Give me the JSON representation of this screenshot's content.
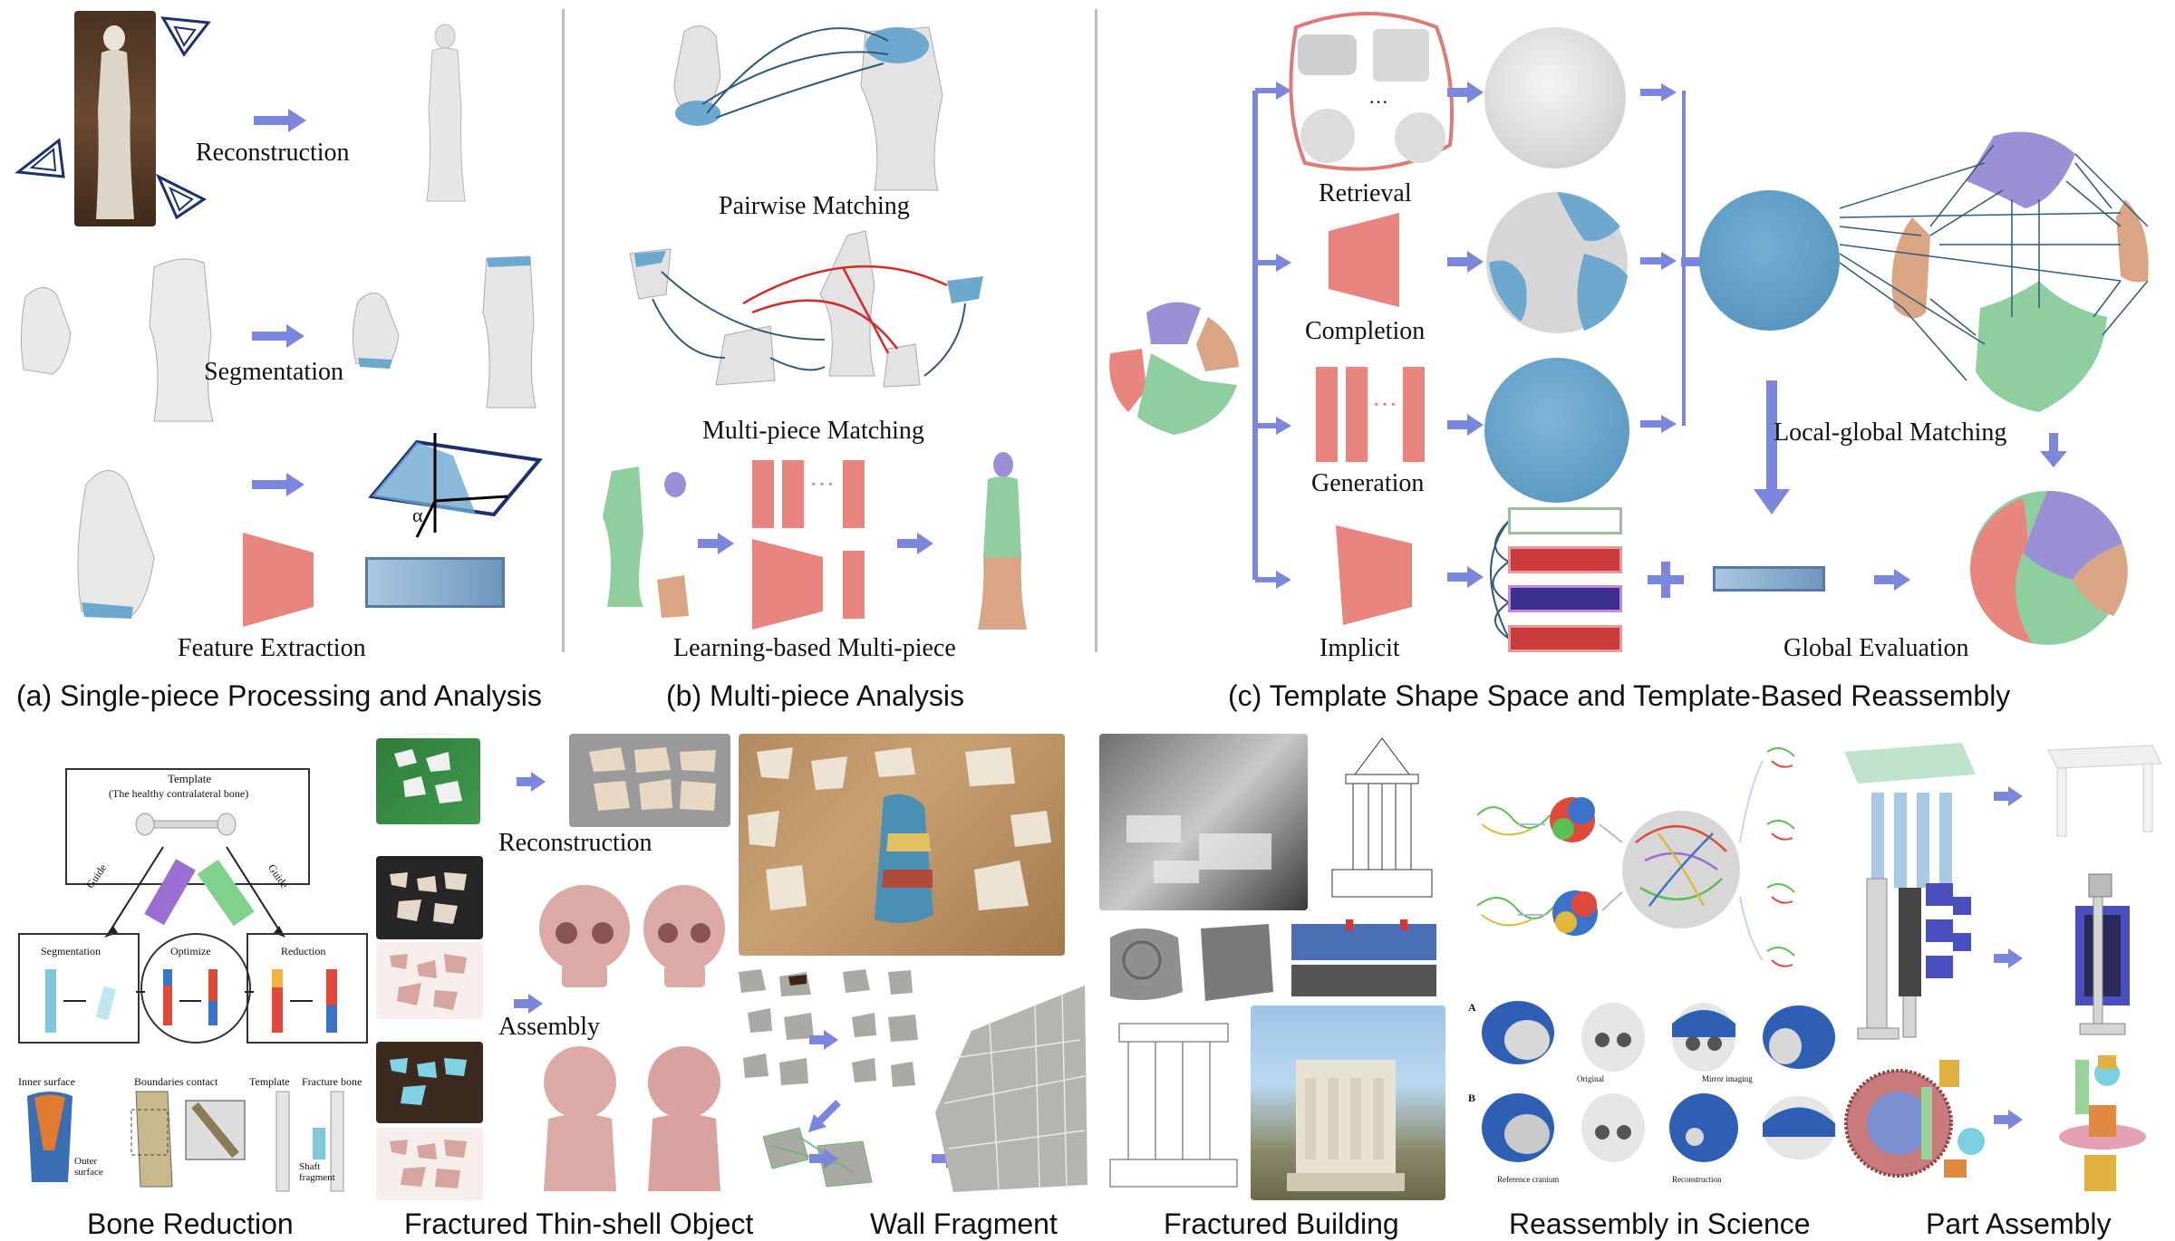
{
  "top": {
    "panel_a": {
      "caption": "(a) Single-piece Processing and Analysis",
      "labels": {
        "reconstruction": "Reconstruction",
        "segmentation": "Segmentation",
        "feature_extraction": "Feature Extraction",
        "alpha": "α"
      }
    },
    "panel_b": {
      "caption": "(b) Multi-piece Analysis",
      "labels": {
        "pairwise": "Pairwise Matching",
        "multi_piece": "Multi-piece Matching",
        "learning": "Learning-based Multi-piece",
        "dots": "···"
      }
    },
    "panel_c": {
      "caption": "(c) Template Shape Space and Template-Based Reassembly",
      "labels": {
        "retrieval": "Retrieval",
        "completion": "Completion",
        "generation": "Generation",
        "implicit": "Implicit",
        "local_global": "Local-global Matching",
        "global_eval": "Global Evaluation",
        "dots": "···"
      }
    }
  },
  "bottom": {
    "bone": {
      "caption": "Bone Reduction",
      "template_title": "Template",
      "template_sub": "(The healthy contralateral bone)",
      "guide": "Guide",
      "segmentation": "Segmentation",
      "optimize": "Optimize",
      "reduction": "Reduction",
      "inner_surface": "Inner surface",
      "boundaries_contact": "Boundaries contact",
      "template": "Template",
      "fracture_bone": "Fracture bone",
      "outer_surface": "Outer surface",
      "shaft_fragment": "Shaft fragment"
    },
    "thin_shell": {
      "caption": "Fractured Thin-shell Object",
      "reconstruction": "Reconstruction",
      "assembly": "Assembly"
    },
    "wall": {
      "caption": "Wall Fragment"
    },
    "building": {
      "caption": "Fractured Building"
    },
    "science": {
      "caption": "Reassembly in Science",
      "label_a": "A",
      "label_b": "B",
      "original": "Original",
      "mirror": "Mirror imaging",
      "reference": "Reference cranium",
      "reconstruction": "Reconstruction"
    },
    "part": {
      "caption": "Part Assembly"
    }
  },
  "colors": {
    "arrow": "#7b86dd",
    "salmon": "#e8857e",
    "blue_piece": "#6da8cf",
    "purple_piece": "#9b8fd6",
    "green_piece": "#8fce9f",
    "tan_piece": "#d9a584",
    "red_rect": "#cc3b3b",
    "navy_rect": "#3b2f8f"
  }
}
